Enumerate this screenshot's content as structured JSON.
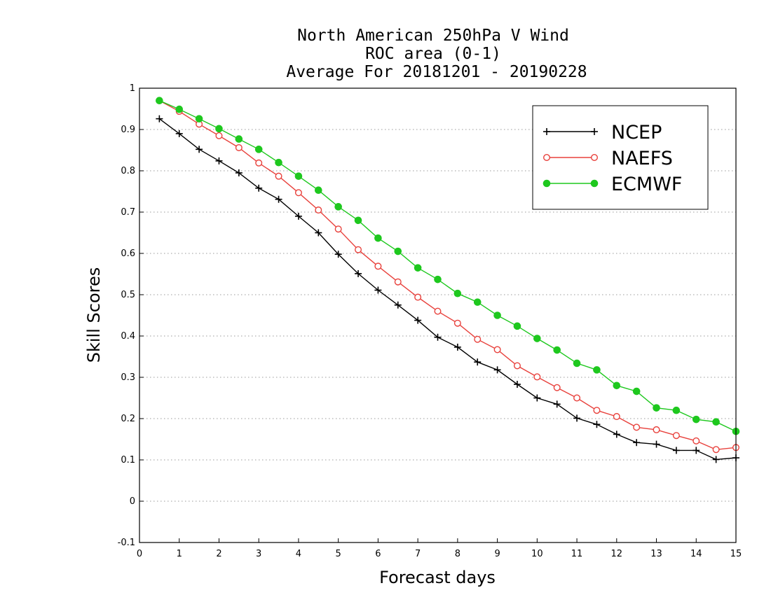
{
  "chart_data": {
    "type": "line",
    "title": [
      "North American 250hPa V Wind",
      "ROC area (0-1)",
      "Average For 20181201 - 20190228"
    ],
    "xlabel": "Forecast days",
    "ylabel": "Skill Scores",
    "xlim": [
      0,
      15
    ],
    "ylim": [
      -0.1,
      1
    ],
    "xticks": [
      0,
      1,
      2,
      3,
      4,
      5,
      6,
      7,
      8,
      9,
      10,
      11,
      12,
      13,
      14,
      15
    ],
    "xtick_labels": [
      "0",
      "1",
      "2",
      "3",
      "4",
      "5",
      "6",
      "7",
      "8",
      "9",
      "10",
      "11",
      "12",
      "13",
      "14",
      "15"
    ],
    "yticks": [
      -0.1,
      0,
      0.1,
      0.2,
      0.3,
      0.4,
      0.5,
      0.6,
      0.7,
      0.8,
      0.9,
      1
    ],
    "ytick_labels": [
      "-0.1",
      "0",
      "0.1",
      "0.2",
      "0.3",
      "0.4",
      "0.5",
      "0.6",
      "0.7",
      "0.8",
      "0.9",
      "1"
    ],
    "grid": "dotted horizontal",
    "legend_position": "top-right",
    "x": [
      0.5,
      1,
      1.5,
      2,
      2.5,
      3,
      3.5,
      4,
      4.5,
      5,
      5.5,
      6,
      6.5,
      7,
      7.5,
      8,
      8.5,
      9,
      9.5,
      10,
      10.5,
      11,
      11.5,
      12,
      12.5,
      13,
      13.5,
      14,
      14.5,
      15
    ],
    "series": [
      {
        "name": "NCEP",
        "color": "#000000",
        "marker": "plus",
        "values": [
          0.926,
          0.89,
          0.852,
          0.824,
          0.795,
          0.758,
          0.731,
          0.69,
          0.65,
          0.598,
          0.551,
          0.511,
          0.475,
          0.438,
          0.397,
          0.373,
          0.337,
          0.318,
          0.283,
          0.25,
          0.235,
          0.201,
          0.186,
          0.162,
          0.142,
          0.138,
          0.123,
          0.123,
          0.101,
          0.105
        ]
      },
      {
        "name": "NAEFS",
        "color": "#e8413c",
        "marker": "open-circle",
        "values": [
          0.97,
          0.944,
          0.913,
          0.885,
          0.856,
          0.819,
          0.787,
          0.747,
          0.705,
          0.659,
          0.609,
          0.569,
          0.531,
          0.494,
          0.46,
          0.431,
          0.392,
          0.367,
          0.328,
          0.301,
          0.275,
          0.25,
          0.22,
          0.205,
          0.179,
          0.173,
          0.159,
          0.146,
          0.125,
          0.13
        ]
      },
      {
        "name": "ECMWF",
        "color": "#1ec81e",
        "marker": "filled-circle",
        "values": [
          0.97,
          0.949,
          0.926,
          0.902,
          0.877,
          0.852,
          0.82,
          0.787,
          0.753,
          0.713,
          0.68,
          0.637,
          0.605,
          0.565,
          0.537,
          0.503,
          0.482,
          0.45,
          0.424,
          0.394,
          0.366,
          0.334,
          0.318,
          0.28,
          0.266,
          0.226,
          0.22,
          0.198,
          0.192,
          0.169
        ]
      }
    ]
  }
}
